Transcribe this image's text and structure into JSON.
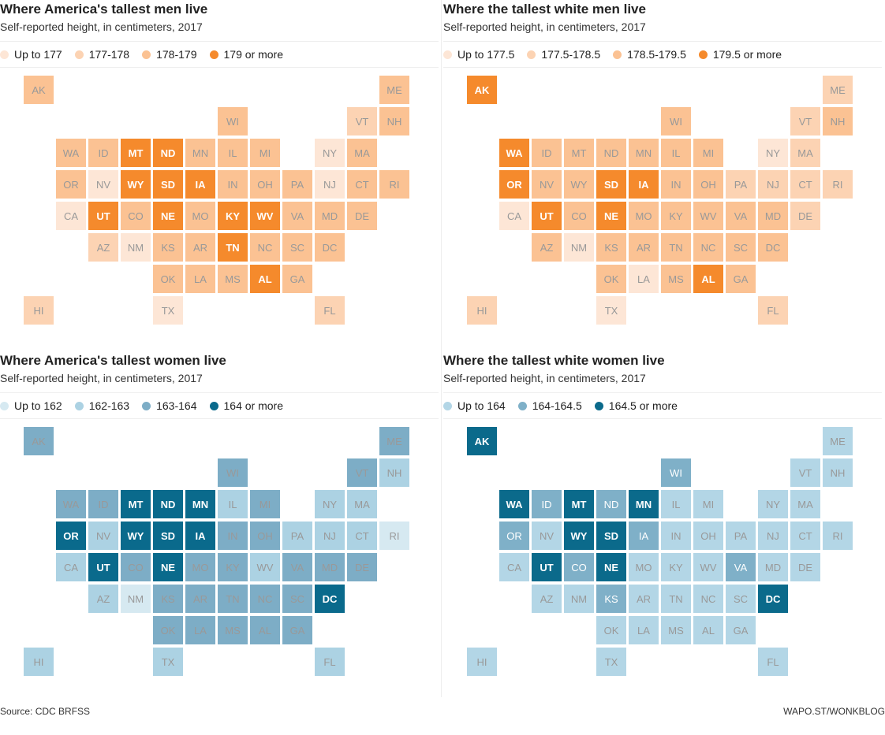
{
  "maps": [
    {
      "title": "Where America's tallest men live",
      "subtitle": "Self-reported height, in centimeters, 2017",
      "legend": [
        {
          "label": "Up to 177",
          "color": "#fde6d6"
        },
        {
          "label": "177-178",
          "color": "#fcd3b3"
        },
        {
          "label": "178-179",
          "color": "#fbc293"
        },
        {
          "label": "179 or more",
          "color": "#f58a2c"
        }
      ],
      "states": {
        "AK": 2,
        "ME": 2,
        "WI": 2,
        "VT": 1,
        "NH": 2,
        "WA": 2,
        "ID": 2,
        "MT": 3,
        "ND": 3,
        "MN": 2,
        "IL": 2,
        "MI": 2,
        "NY": 0,
        "MA": 2,
        "OR": 2,
        "NV": 0,
        "WY": 3,
        "SD": 3,
        "IA": 3,
        "IN": 2,
        "OH": 2,
        "PA": 2,
        "NJ": 0,
        "CT": 2,
        "RI": 2,
        "CA": 0,
        "UT": 3,
        "CO": 2,
        "NE": 3,
        "MO": 2,
        "KY": 3,
        "WV": 3,
        "VA": 2,
        "MD": 2,
        "DE": 2,
        "AZ": 1,
        "NM": 0,
        "KS": 2,
        "AR": 2,
        "TN": 3,
        "NC": 2,
        "SC": 2,
        "DC": 2,
        "OK": 2,
        "LA": 2,
        "MS": 2,
        "AL": 3,
        "GA": 2,
        "HI": 1,
        "TX": 0,
        "FL": 1
      }
    },
    {
      "title": "Where the tallest white men live",
      "subtitle": "Self-reported height, in centimeters, 2017",
      "legend": [
        {
          "label": "Up to 177.5",
          "color": "#fde6d6"
        },
        {
          "label": "177.5-178.5",
          "color": "#fcd3b3"
        },
        {
          "label": "178.5-179.5",
          "color": "#fbc293"
        },
        {
          "label": "179.5 or more",
          "color": "#f58a2c"
        }
      ],
      "states": {
        "AK": 3,
        "ME": 1,
        "WI": 2,
        "VT": 1,
        "NH": 2,
        "WA": 3,
        "ID": 2,
        "MT": 2,
        "ND": 2,
        "MN": 2,
        "IL": 2,
        "MI": 2,
        "NY": 0,
        "MA": 1,
        "OR": 3,
        "NV": 2,
        "WY": 2,
        "SD": 3,
        "IA": 3,
        "IN": 2,
        "OH": 2,
        "PA": 1,
        "NJ": 1,
        "CT": 1,
        "RI": 1,
        "CA": 0,
        "UT": 3,
        "CO": 2,
        "NE": 3,
        "MO": 2,
        "KY": 2,
        "WV": 2,
        "VA": 2,
        "MD": 2,
        "DE": 1,
        "AZ": 2,
        "NM": 0,
        "KS": 2,
        "AR": 2,
        "TN": 2,
        "NC": 2,
        "SC": 2,
        "DC": 2,
        "OK": 2,
        "LA": 0,
        "MS": 2,
        "AL": 3,
        "GA": 2,
        "HI": 1,
        "TX": 0,
        "FL": 1
      }
    },
    {
      "title": "Where America's tallest women live",
      "subtitle": "Self-reported height, in centimeters, 2017",
      "legend": [
        {
          "label": "Up to 162",
          "color": "#d6e9f1"
        },
        {
          "label": "162-163",
          "color": "#acd2e3"
        },
        {
          "label": "163-164",
          "color": "#7dadc6"
        },
        {
          "label": "164 or more",
          "color": "#0a6a8c"
        }
      ],
      "states": {
        "AK": 2,
        "ME": 2,
        "WI": 2,
        "VT": 2,
        "NH": 1,
        "WA": 2,
        "ID": 2,
        "MT": 3,
        "ND": 3,
        "MN": 3,
        "IL": 1,
        "MI": 2,
        "NY": 1,
        "MA": 1,
        "OR": 3,
        "NV": 1,
        "WY": 3,
        "SD": 3,
        "IA": 3,
        "IN": 2,
        "OH": 2,
        "PA": 1,
        "NJ": 1,
        "CT": 1,
        "RI": 0,
        "CA": 1,
        "UT": 3,
        "CO": 2,
        "NE": 3,
        "MO": 2,
        "KY": 2,
        "WV": 1,
        "VA": 2,
        "MD": 2,
        "DE": 2,
        "AZ": 1,
        "NM": 0,
        "KS": 2,
        "AR": 2,
        "TN": 2,
        "NC": 2,
        "SC": 2,
        "DC": 3,
        "OK": 2,
        "LA": 2,
        "MS": 2,
        "AL": 2,
        "GA": 2,
        "HI": 1,
        "TX": 1,
        "FL": 1
      }
    },
    {
      "title": "Where the tallest white women live",
      "subtitle": "Self-reported height, in centimeters, 2017",
      "legend": [
        {
          "label": "Up to 164",
          "color": "#b3d6e6"
        },
        {
          "label": "164-164.5",
          "color": "#7fb0c8"
        },
        {
          "label": "164.5 or more",
          "color": "#0b6a8b"
        }
      ],
      "states": {
        "AK": 2,
        "ME": 0,
        "WI": 1,
        "VT": 0,
        "NH": 0,
        "WA": 2,
        "ID": 1,
        "MT": 2,
        "ND": 1,
        "MN": 2,
        "IL": 0,
        "MI": 0,
        "NY": 0,
        "MA": 0,
        "OR": 1,
        "NV": 0,
        "WY": 2,
        "SD": 2,
        "IA": 1,
        "IN": 0,
        "OH": 0,
        "PA": 0,
        "NJ": 0,
        "CT": 0,
        "RI": 0,
        "CA": 0,
        "UT": 2,
        "CO": 1,
        "NE": 2,
        "MO": 0,
        "KY": 0,
        "WV": 0,
        "VA": 1,
        "MD": 0,
        "DE": 0,
        "AZ": 0,
        "NM": 0,
        "KS": 1,
        "AR": 0,
        "TN": 0,
        "NC": 0,
        "SC": 0,
        "DC": 2,
        "OK": 0,
        "LA": 0,
        "MS": 0,
        "AL": 0,
        "GA": 0,
        "HI": 0,
        "TX": 0,
        "FL": 0
      }
    }
  ],
  "footer": {
    "source": "Source: CDC BRFSS",
    "credit": "WAPO.ST/WONKBLOG"
  }
}
